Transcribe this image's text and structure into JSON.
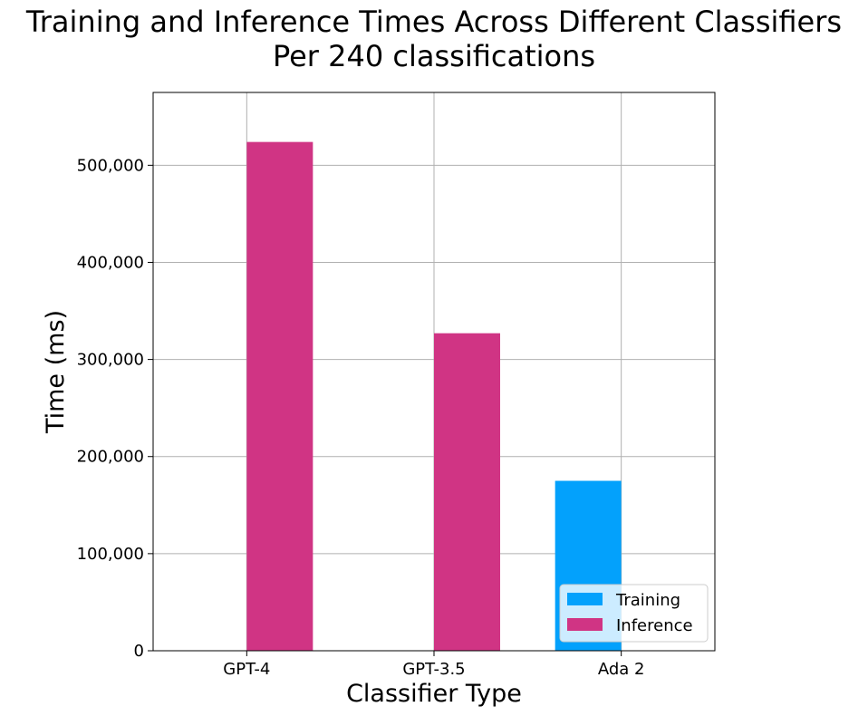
{
  "chart_data": {
    "type": "bar",
    "title": "Training and Inference Times Across Different Classifiers",
    "subtitle": "Per 240 classifications",
    "xlabel": "Classifier Type",
    "ylabel": "Time (ms)",
    "categories": [
      "GPT-4",
      "GPT-3.5",
      "Ada 2"
    ],
    "series": [
      {
        "name": "Training",
        "color": "#03a1fc",
        "values": [
          0,
          0,
          175000
        ]
      },
      {
        "name": "Inference",
        "color": "#d03484",
        "values": [
          524000,
          327000,
          0
        ]
      }
    ],
    "ylim": [
      0,
      575000
    ],
    "yticks": [
      0,
      100000,
      200000,
      300000,
      400000,
      500000
    ],
    "ytick_labels": [
      "0",
      "100,000",
      "200,000",
      "300,000",
      "400,000",
      "500,000"
    ],
    "grid": true,
    "legend_position": "lower-right"
  }
}
